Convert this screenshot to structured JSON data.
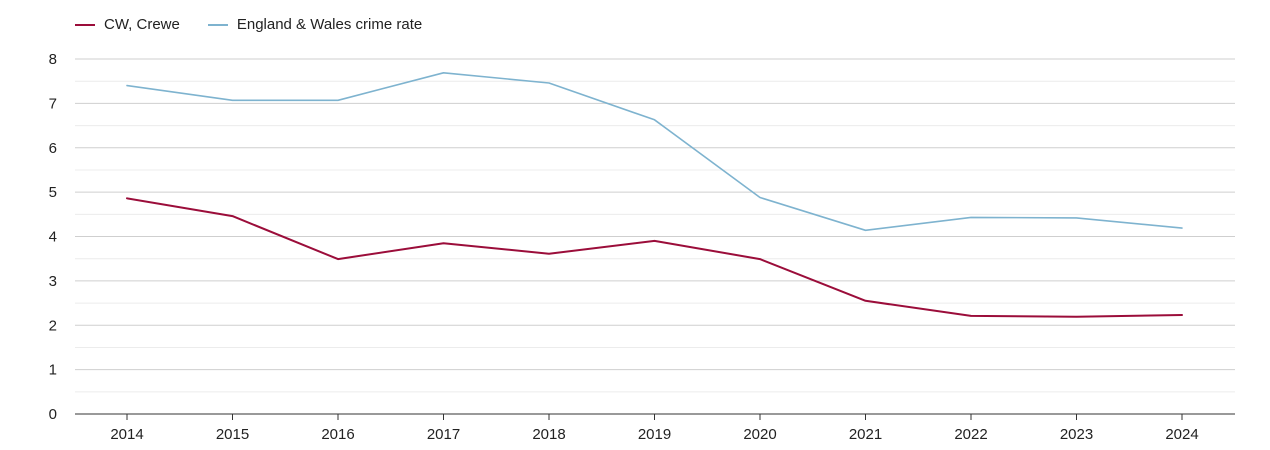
{
  "chart_data": {
    "type": "line",
    "title": "",
    "xlabel": "",
    "ylabel": "",
    "x": [
      "2014",
      "2015",
      "2016",
      "2017",
      "2018",
      "2019",
      "2020",
      "2021",
      "2022",
      "2023",
      "2024"
    ],
    "ylim": [
      0,
      8
    ],
    "yticks": [
      "0",
      "1",
      "2",
      "3",
      "4",
      "5",
      "6",
      "7",
      "8"
    ],
    "grid": true,
    "legend_position": "top-left",
    "series": [
      {
        "name": "CW, Crewe",
        "color": "#9b0d3a",
        "values": [
          4.86,
          4.46,
          3.49,
          3.85,
          3.61,
          3.9,
          3.49,
          2.55,
          2.21,
          2.19,
          2.23
        ]
      },
      {
        "name": "England & Wales crime rate",
        "color": "#7eb3cf",
        "values": [
          7.4,
          7.07,
          7.07,
          7.69,
          7.46,
          6.63,
          4.88,
          4.14,
          4.43,
          4.42,
          4.19
        ]
      }
    ]
  }
}
